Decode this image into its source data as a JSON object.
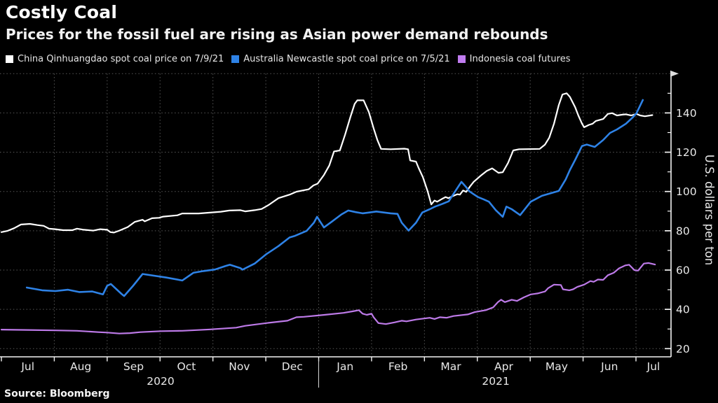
{
  "header": {
    "title": "Costly Coal",
    "subtitle": "Prices for the fossil fuel are rising as Asian power demand rebounds"
  },
  "legend": {
    "items": [
      {
        "id": "china-qinhuangdao",
        "label": "China Qinhuangdao spot coal price on 7/9/21",
        "color": "#ffffff"
      },
      {
        "id": "australia-newcastle",
        "label": "Australia Newcastle spot coal price on 7/5/21",
        "color": "#2e82e6"
      },
      {
        "id": "indonesia-futures",
        "label": "Indonesia coal futures",
        "color": "#c07cf0"
      }
    ]
  },
  "footer": {
    "source": "Source: Bloomberg"
  },
  "chart_data": {
    "type": "line",
    "title": "Costly Coal",
    "subtitle": "Prices for the fossil fuel are rising as Asian power demand rebounds",
    "ylabel": "U.S. dollars per ton",
    "ylim": [
      16,
      160
    ],
    "grid": "dotted",
    "legend_position": "top",
    "x_unit": "fractional months after Jul 1 2020 (0 = Jul 2020, 12 = Jul 2021)",
    "y_axis": {
      "axis_title": "U.S. dollars per ton",
      "ticks_major": [
        20,
        40,
        60,
        80,
        100,
        120,
        140
      ],
      "ticks_minor": [
        30,
        50,
        70,
        90,
        110,
        130,
        150
      ],
      "top_gridline_value": 160
    },
    "x_axis": {
      "month_labels": [
        "Jul",
        "Aug",
        "Sep",
        "Oct",
        "Nov",
        "Dec",
        "Jan",
        "Feb",
        "Mar",
        "Apr",
        "May",
        "Jun",
        "Jul"
      ],
      "year_labels": [
        {
          "label": "2020",
          "month": 3.01
        },
        {
          "label": "2021",
          "month": 9.35
        }
      ],
      "year_divider_month": 6.0
    },
    "series": [
      {
        "id": "china-qinhuangdao",
        "name": "China Qinhuangdao spot coal price on 7/9/21",
        "color": "#ffffff",
        "width": 2.2,
        "points": [
          [
            0,
            79.3
          ],
          [
            0.11,
            79.9
          ],
          [
            0.24,
            81.3
          ],
          [
            0.37,
            83.2
          ],
          [
            0.54,
            83.5
          ],
          [
            0.68,
            82.9
          ],
          [
            0.8,
            82.5
          ],
          [
            0.9,
            81.1
          ],
          [
            1.02,
            80.8
          ],
          [
            1.17,
            80.3
          ],
          [
            1.34,
            80.3
          ],
          [
            1.43,
            81.1
          ],
          [
            1.56,
            80.5
          ],
          [
            1.74,
            80.1
          ],
          [
            1.87,
            80.8
          ],
          [
            2,
            80.5
          ],
          [
            2.06,
            79.3
          ],
          [
            2.13,
            79.1
          ],
          [
            2.23,
            80.1
          ],
          [
            2.39,
            81.9
          ],
          [
            2.52,
            84.5
          ],
          [
            2.67,
            85.6
          ],
          [
            2.71,
            84.8
          ],
          [
            2.85,
            86.4
          ],
          [
            2.98,
            86.6
          ],
          [
            3.06,
            87.2
          ],
          [
            3.33,
            87.9
          ],
          [
            3.42,
            88.8
          ],
          [
            3.73,
            88.8
          ],
          [
            4.15,
            89.7
          ],
          [
            4.31,
            90.3
          ],
          [
            4.52,
            90.5
          ],
          [
            4.61,
            89.9
          ],
          [
            4.79,
            90.5
          ],
          [
            4.92,
            91.1
          ],
          [
            5.05,
            93.1
          ],
          [
            5.24,
            96.6
          ],
          [
            5.45,
            98.4
          ],
          [
            5.58,
            99.9
          ],
          [
            5.81,
            101.1
          ],
          [
            5.9,
            103.1
          ],
          [
            5.98,
            104
          ],
          [
            6.1,
            108.4
          ],
          [
            6.2,
            113.2
          ],
          [
            6.29,
            120.4
          ],
          [
            6.4,
            120.9
          ],
          [
            6.5,
            129
          ],
          [
            6.6,
            138
          ],
          [
            6.68,
            144.6
          ],
          [
            6.73,
            146.4
          ],
          [
            6.85,
            146.4
          ],
          [
            6.95,
            140.4
          ],
          [
            7.04,
            132.1
          ],
          [
            7.11,
            126.2
          ],
          [
            7.18,
            121.7
          ],
          [
            7.36,
            121.5
          ],
          [
            7.62,
            121.8
          ],
          [
            7.69,
            121.5
          ],
          [
            7.73,
            115.8
          ],
          [
            7.84,
            115.2
          ],
          [
            7.89,
            112
          ],
          [
            7.97,
            107.3
          ],
          [
            8.06,
            100.1
          ],
          [
            8.13,
            93.4
          ],
          [
            8.19,
            95.4
          ],
          [
            8.24,
            94.8
          ],
          [
            8.33,
            96.2
          ],
          [
            8.4,
            97.2
          ],
          [
            8.45,
            96.6
          ],
          [
            8.55,
            97.8
          ],
          [
            8.62,
            98.6
          ],
          [
            8.67,
            98.4
          ],
          [
            8.73,
            100.5
          ],
          [
            8.79,
            99.8
          ],
          [
            8.86,
            102.5
          ],
          [
            8.93,
            104.9
          ],
          [
            9.08,
            108.4
          ],
          [
            9.18,
            110.5
          ],
          [
            9.28,
            111.8
          ],
          [
            9.4,
            109.5
          ],
          [
            9.48,
            109.8
          ],
          [
            9.58,
            114.5
          ],
          [
            9.68,
            120.9
          ],
          [
            9.79,
            121.5
          ],
          [
            10.18,
            121.7
          ],
          [
            10.28,
            123.9
          ],
          [
            10.36,
            127.4
          ],
          [
            10.45,
            134.5
          ],
          [
            10.54,
            144
          ],
          [
            10.61,
            149.4
          ],
          [
            10.69,
            150
          ],
          [
            10.75,
            148.2
          ],
          [
            10.85,
            142.9
          ],
          [
            10.91,
            138.7
          ],
          [
            10.98,
            134.5
          ],
          [
            11.02,
            132.7
          ],
          [
            11.11,
            133.9
          ],
          [
            11.18,
            134.5
          ],
          [
            11.24,
            135.9
          ],
          [
            11.38,
            136.9
          ],
          [
            11.47,
            139.5
          ],
          [
            11.55,
            139.9
          ],
          [
            11.64,
            138.7
          ],
          [
            11.74,
            139.1
          ],
          [
            11.81,
            139.3
          ],
          [
            11.91,
            138.7
          ],
          [
            12.01,
            139.5
          ],
          [
            12.08,
            138.7
          ],
          [
            12.17,
            138.3
          ],
          [
            12.31,
            138.9
          ]
        ]
      },
      {
        "id": "australia-newcastle",
        "name": "Australia Newcastle spot coal price on 7/5/21",
        "color": "#2e82e6",
        "width": 2.6,
        "points": [
          [
            0.48,
            51.1
          ],
          [
            0.77,
            49.7
          ],
          [
            1.02,
            49.3
          ],
          [
            1.26,
            50
          ],
          [
            1.47,
            48.8
          ],
          [
            1.72,
            49.1
          ],
          [
            1.92,
            47.6
          ],
          [
            2,
            52
          ],
          [
            2.07,
            52.9
          ],
          [
            2.27,
            47.9
          ],
          [
            2.32,
            46.8
          ],
          [
            2.49,
            52
          ],
          [
            2.67,
            58
          ],
          [
            3.12,
            56.2
          ],
          [
            3.42,
            54.7
          ],
          [
            3.63,
            58.6
          ],
          [
            3.82,
            59.5
          ],
          [
            4.04,
            60.3
          ],
          [
            4.24,
            62.1
          ],
          [
            4.32,
            62.7
          ],
          [
            4.52,
            61
          ],
          [
            4.56,
            60.2
          ],
          [
            4.79,
            63.3
          ],
          [
            5.01,
            68.1
          ],
          [
            5.24,
            72.2
          ],
          [
            5.45,
            76.6
          ],
          [
            5.54,
            77.3
          ],
          [
            5.77,
            79.9
          ],
          [
            5.91,
            84.1
          ],
          [
            5.97,
            87.1
          ],
          [
            6.1,
            81.7
          ],
          [
            6.25,
            84.7
          ],
          [
            6.43,
            88.3
          ],
          [
            6.56,
            90.3
          ],
          [
            6.7,
            89.5
          ],
          [
            6.83,
            88.9
          ],
          [
            6.96,
            89.3
          ],
          [
            7.09,
            89.8
          ],
          [
            7.23,
            89.3
          ],
          [
            7.36,
            88.9
          ],
          [
            7.49,
            88.6
          ],
          [
            7.57,
            84.1
          ],
          [
            7.7,
            80.1
          ],
          [
            7.84,
            84.1
          ],
          [
            7.96,
            89.3
          ],
          [
            8.1,
            91
          ],
          [
            8.2,
            92.3
          ],
          [
            8.33,
            93.6
          ],
          [
            8.46,
            95
          ],
          [
            8.57,
            99.6
          ],
          [
            8.7,
            104.9
          ],
          [
            8.78,
            102.5
          ],
          [
            8.85,
            100.1
          ],
          [
            8.93,
            98.6
          ],
          [
            9.01,
            97.2
          ],
          [
            9.12,
            96
          ],
          [
            9.22,
            94.8
          ],
          [
            9.35,
            90.5
          ],
          [
            9.48,
            87.1
          ],
          [
            9.55,
            92.3
          ],
          [
            9.65,
            91
          ],
          [
            9.81,
            88
          ],
          [
            10.01,
            94.8
          ],
          [
            10.22,
            97.8
          ],
          [
            10.54,
            100.3
          ],
          [
            10.67,
            106.1
          ],
          [
            10.75,
            110.9
          ],
          [
            10.85,
            116.1
          ],
          [
            10.98,
            123.2
          ],
          [
            11.07,
            123.9
          ],
          [
            11.22,
            122.7
          ],
          [
            11.38,
            126.2
          ],
          [
            11.51,
            129.8
          ],
          [
            11.64,
            131.6
          ],
          [
            11.81,
            134.5
          ],
          [
            11.95,
            138
          ],
          [
            12.01,
            139.9
          ],
          [
            12.13,
            146.6
          ]
        ]
      },
      {
        "id": "indonesia-futures",
        "name": "Indonesia coal futures",
        "color": "#bd7ae8",
        "width": 2.2,
        "points": [
          [
            0,
            29.7
          ],
          [
            0.5,
            29.5
          ],
          [
            1.02,
            29.3
          ],
          [
            1.43,
            29.1
          ],
          [
            1.83,
            28.4
          ],
          [
            2,
            28.2
          ],
          [
            2.23,
            27.7
          ],
          [
            2.43,
            27.9
          ],
          [
            2.63,
            28.4
          ],
          [
            3.02,
            28.9
          ],
          [
            3.42,
            29.1
          ],
          [
            3.95,
            29.8
          ],
          [
            4.44,
            30.7
          ],
          [
            4.61,
            31.6
          ],
          [
            5.01,
            33
          ],
          [
            5.41,
            34.2
          ],
          [
            5.58,
            36
          ],
          [
            5.72,
            36.2
          ],
          [
            6.11,
            37.2
          ],
          [
            6.47,
            38.2
          ],
          [
            6.64,
            39
          ],
          [
            6.76,
            39.6
          ],
          [
            6.83,
            37.8
          ],
          [
            6.91,
            37.2
          ],
          [
            7,
            37.8
          ],
          [
            7.04,
            36
          ],
          [
            7.13,
            33
          ],
          [
            7.27,
            32.5
          ],
          [
            7.44,
            33.4
          ],
          [
            7.57,
            34.2
          ],
          [
            7.66,
            33.9
          ],
          [
            7.84,
            34.8
          ],
          [
            8.1,
            35.7
          ],
          [
            8.19,
            35.1
          ],
          [
            8.29,
            36
          ],
          [
            8.42,
            35.7
          ],
          [
            8.55,
            36.6
          ],
          [
            8.82,
            37.4
          ],
          [
            8.95,
            38.6
          ],
          [
            9.16,
            39.6
          ],
          [
            9.3,
            41
          ],
          [
            9.39,
            43.7
          ],
          [
            9.45,
            44.9
          ],
          [
            9.52,
            43.7
          ],
          [
            9.65,
            44.9
          ],
          [
            9.75,
            44.3
          ],
          [
            9.88,
            46.1
          ],
          [
            10.01,
            47.6
          ],
          [
            10.14,
            48.1
          ],
          [
            10.28,
            49.1
          ],
          [
            10.34,
            50.8
          ],
          [
            10.45,
            52.6
          ],
          [
            10.58,
            52.4
          ],
          [
            10.62,
            50.2
          ],
          [
            10.74,
            49.7
          ],
          [
            10.81,
            50.2
          ],
          [
            10.89,
            51.4
          ],
          [
            11.02,
            52.6
          ],
          [
            11.14,
            54.4
          ],
          [
            11.2,
            54
          ],
          [
            11.28,
            55.2
          ],
          [
            11.38,
            55
          ],
          [
            11.47,
            57.4
          ],
          [
            11.58,
            58.6
          ],
          [
            11.68,
            60.9
          ],
          [
            11.8,
            62.4
          ],
          [
            11.87,
            62.7
          ],
          [
            11.97,
            60
          ],
          [
            12.04,
            59.7
          ],
          [
            12.15,
            63.3
          ],
          [
            12.24,
            63.6
          ],
          [
            12.36,
            62.8
          ]
        ]
      }
    ]
  }
}
